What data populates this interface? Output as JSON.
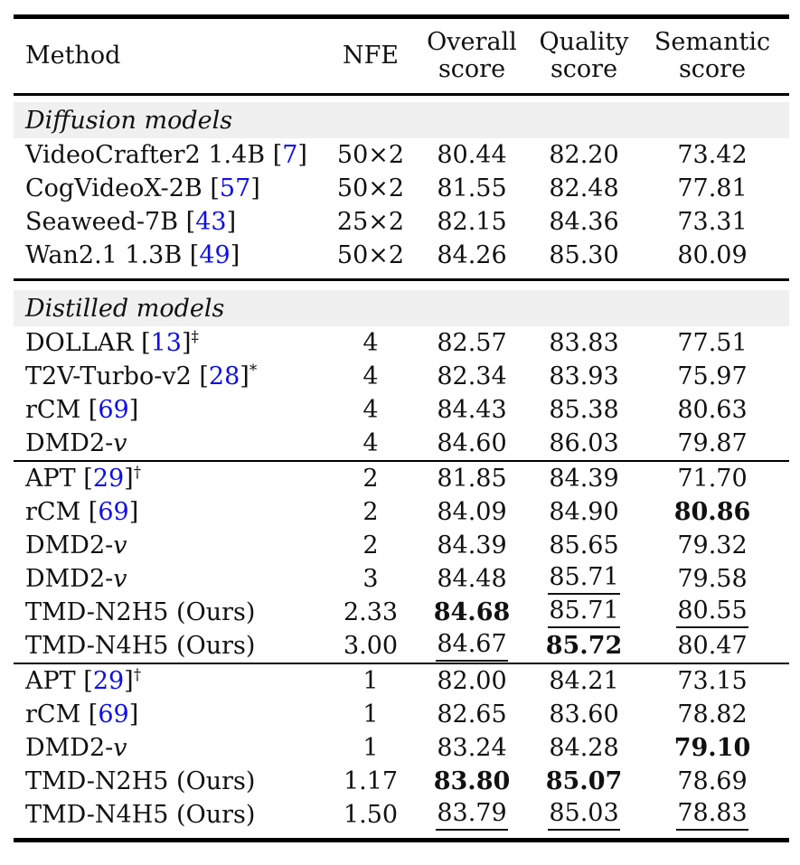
{
  "table": {
    "columns": [
      "Method",
      "NFE",
      "Overall\nscore",
      "Quality\nscore",
      "Semantic\nscore"
    ],
    "styles": {
      "cite_color": "#0f0fe8",
      "band_bg": "#f0f0f0",
      "text_color": "#111111"
    },
    "sections": [
      {
        "label": "Diffusion models",
        "groups": [
          [
            {
              "method": {
                "text": "VideoCrafter2 1.4B",
                "cite": "7"
              },
              "nfe": "50×2",
              "scores": [
                {
                  "v": "80.44"
                },
                {
                  "v": "82.20"
                },
                {
                  "v": "73.42"
                }
              ]
            },
            {
              "method": {
                "text": "CogVideoX-2B",
                "cite": "57"
              },
              "nfe": "50×2",
              "scores": [
                {
                  "v": "81.55"
                },
                {
                  "v": "82.48"
                },
                {
                  "v": "77.81"
                }
              ]
            },
            {
              "method": {
                "text": "Seaweed-7B",
                "cite": "43"
              },
              "nfe": "25×2",
              "scores": [
                {
                  "v": "82.15"
                },
                {
                  "v": "84.36"
                },
                {
                  "v": "73.31"
                }
              ]
            },
            {
              "method": {
                "text": "Wan2.1 1.3B",
                "cite": "49"
              },
              "nfe": "50×2",
              "scores": [
                {
                  "v": "84.26"
                },
                {
                  "v": "85.30"
                },
                {
                  "v": "80.09"
                }
              ]
            }
          ]
        ]
      },
      {
        "label": "Distilled models",
        "groups": [
          [
            {
              "method": {
                "text": "DOLLAR",
                "cite": "13",
                "sup": "‡"
              },
              "nfe": "4",
              "scores": [
                {
                  "v": "82.57"
                },
                {
                  "v": "83.83"
                },
                {
                  "v": "77.51"
                }
              ]
            },
            {
              "method": {
                "text": "T2V-Turbo-v2",
                "cite": "28",
                "sup": "*"
              },
              "nfe": "4",
              "scores": [
                {
                  "v": "82.34"
                },
                {
                  "v": "83.93"
                },
                {
                  "v": "75.97"
                }
              ]
            },
            {
              "method": {
                "text": "rCM",
                "cite": "69"
              },
              "nfe": "4",
              "scores": [
                {
                  "v": "84.43"
                },
                {
                  "v": "85.38"
                },
                {
                  "v": "80.63"
                }
              ]
            },
            {
              "method": {
                "text": "DMD2-",
                "italic": "v"
              },
              "nfe": "4",
              "scores": [
                {
                  "v": "84.60"
                },
                {
                  "v": "86.03"
                },
                {
                  "v": "79.87"
                }
              ]
            }
          ],
          [
            {
              "method": {
                "text": "APT",
                "cite": "29",
                "sup": "†"
              },
              "nfe": "2",
              "scores": [
                {
                  "v": "81.85"
                },
                {
                  "v": "84.39"
                },
                {
                  "v": "71.70"
                }
              ]
            },
            {
              "method": {
                "text": "rCM",
                "cite": "69"
              },
              "nfe": "2",
              "scores": [
                {
                  "v": "84.09"
                },
                {
                  "v": "84.90"
                },
                {
                  "v": "80.86",
                  "b": true
                }
              ]
            },
            {
              "method": {
                "text": "DMD2-",
                "italic": "v"
              },
              "nfe": "2",
              "scores": [
                {
                  "v": "84.39"
                },
                {
                  "v": "85.65"
                },
                {
                  "v": "79.32"
                }
              ]
            },
            {
              "method": {
                "text": "DMD2-",
                "italic": "v"
              },
              "nfe": "3",
              "scores": [
                {
                  "v": "84.48"
                },
                {
                  "v": "85.71",
                  "u": true
                },
                {
                  "v": "79.58"
                }
              ]
            },
            {
              "method": {
                "text": "TMD-N2H5 (Ours)"
              },
              "nfe": "2.33",
              "scores": [
                {
                  "v": "84.68",
                  "b": true
                },
                {
                  "v": "85.71",
                  "u": true
                },
                {
                  "v": "80.55",
                  "u": true
                }
              ]
            },
            {
              "method": {
                "text": "TMD-N4H5 (Ours)"
              },
              "nfe": "3.00",
              "scores": [
                {
                  "v": "84.67",
                  "u": true
                },
                {
                  "v": "85.72",
                  "b": true
                },
                {
                  "v": "80.47"
                }
              ]
            }
          ],
          [
            {
              "method": {
                "text": "APT",
                "cite": "29",
                "sup": "†"
              },
              "nfe": "1",
              "scores": [
                {
                  "v": "82.00"
                },
                {
                  "v": "84.21"
                },
                {
                  "v": "73.15"
                }
              ]
            },
            {
              "method": {
                "text": "rCM",
                "cite": "69"
              },
              "nfe": "1",
              "scores": [
                {
                  "v": "82.65"
                },
                {
                  "v": "83.60"
                },
                {
                  "v": "78.82"
                }
              ]
            },
            {
              "method": {
                "text": "DMD2-",
                "italic": "v"
              },
              "nfe": "1",
              "scores": [
                {
                  "v": "83.24"
                },
                {
                  "v": "84.28"
                },
                {
                  "v": "79.10",
                  "b": true
                }
              ]
            },
            {
              "method": {
                "text": "TMD-N2H5 (Ours)"
              },
              "nfe": "1.17",
              "scores": [
                {
                  "v": "83.80",
                  "b": true
                },
                {
                  "v": "85.07",
                  "b": true
                },
                {
                  "v": "78.69"
                }
              ]
            },
            {
              "method": {
                "text": "TMD-N4H5 (Ours)"
              },
              "nfe": "1.50",
              "scores": [
                {
                  "v": "83.79",
                  "u": true
                },
                {
                  "v": "85.03",
                  "u": true
                },
                {
                  "v": "78.83",
                  "u": true
                }
              ]
            }
          ]
        ]
      }
    ]
  }
}
